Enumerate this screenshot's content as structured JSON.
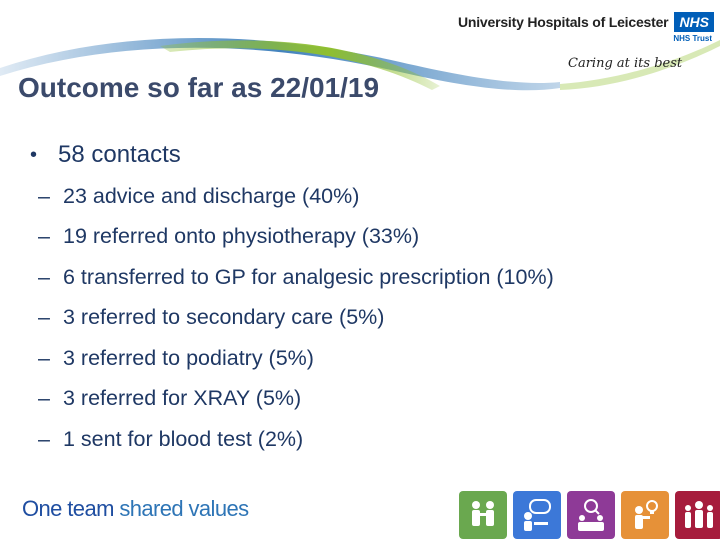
{
  "header": {
    "org_name": "University Hospitals of Leicester",
    "nhs_badge": "NHS",
    "nhs_trust": "NHS Trust",
    "tagline": "Caring at its best"
  },
  "slide": {
    "title": "Outcome so far as 22/01/19",
    "main_bullet": "58 contacts",
    "sub_bullets": [
      "23 advice and discharge (40%)",
      "19 referred onto physiotherapy (33%)",
      "6 transferred to GP for analgesic prescription (10%)",
      "3 referred to secondary care (5%)",
      "3 referred to podiatry (5%)",
      "3 referred for XRAY (5%)",
      "1 sent for blood test (2%)"
    ]
  },
  "footer": {
    "text_part1": "One team ",
    "text_part2": "shared values"
  },
  "colors": {
    "title": "#3b4a6b",
    "body_text": "#1f3864",
    "nhs_blue": "#005eb8",
    "swoosh_blue": "#2e75b6",
    "swoosh_green": "#8fbf2f"
  },
  "footer_icons": [
    {
      "name": "team-people-icon",
      "color": "#6aa84f"
    },
    {
      "name": "person-speech-icon",
      "color": "#3c78d8"
    },
    {
      "name": "person-magnifier-icon",
      "color": "#8e3a97"
    },
    {
      "name": "person-idea-icon",
      "color": "#e69138"
    },
    {
      "name": "group-people-icon",
      "color": "#a61c3c"
    }
  ]
}
